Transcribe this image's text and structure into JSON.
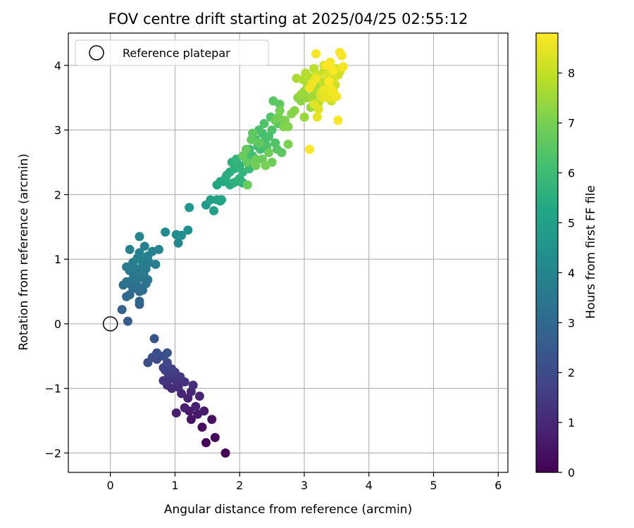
{
  "chart_data": {
    "type": "scatter",
    "title": "FOV centre drift starting at 2025/04/25 02:55:12",
    "xlabel": "Angular distance from reference (arcmin)",
    "ylabel": "Rotation from reference (arcmin)",
    "colorbar_label": "Hours from first FF file",
    "colormap": "viridis",
    "colorbar_range": [
      0,
      8.8
    ],
    "colorbar_ticks": [
      0,
      1,
      2,
      3,
      4,
      5,
      6,
      7,
      8
    ],
    "xlim": [
      -0.65,
      6.15
    ],
    "ylim": [
      -2.3,
      4.5
    ],
    "xticks": [
      0,
      1,
      2,
      3,
      4,
      5,
      6
    ],
    "yticks": [
      -2,
      -1,
      0,
      1,
      2,
      3,
      4
    ],
    "ytick_labels": [
      "−2",
      "−1",
      "0",
      "1",
      "2",
      "3",
      "4"
    ],
    "grid": true,
    "legend": {
      "location": "upper-left",
      "entries": [
        "Reference platepar"
      ]
    },
    "reference_point": {
      "x": 0,
      "y": 0
    },
    "points": [
      [
        1.78,
        -2.0,
        0.0
      ],
      [
        1.48,
        -1.84,
        0.1
      ],
      [
        1.62,
        -1.76,
        0.15
      ],
      [
        1.42,
        -1.6,
        0.3
      ],
      [
        1.57,
        -1.48,
        0.35
      ],
      [
        1.25,
        -1.48,
        0.45
      ],
      [
        1.35,
        -1.4,
        0.55
      ],
      [
        1.22,
        -1.35,
        0.6
      ],
      [
        1.45,
        -1.35,
        0.65
      ],
      [
        1.02,
        -1.38,
        0.7
      ],
      [
        1.15,
        -1.3,
        0.75
      ],
      [
        1.32,
        -1.28,
        0.8
      ],
      [
        1.2,
        -1.15,
        0.85
      ],
      [
        1.38,
        -1.12,
        0.9
      ],
      [
        1.1,
        -1.08,
        0.95
      ],
      [
        1.25,
        -1.05,
        1.0
      ],
      [
        0.95,
        -1.0,
        1.05
      ],
      [
        1.05,
        -0.98,
        1.1
      ],
      [
        0.88,
        -0.95,
        1.15
      ],
      [
        1.28,
        -0.95,
        1.2
      ],
      [
        1.15,
        -0.9,
        1.25
      ],
      [
        1.02,
        -0.88,
        1.3
      ],
      [
        0.82,
        -0.88,
        1.35
      ],
      [
        0.95,
        -0.85,
        1.4
      ],
      [
        1.08,
        -0.82,
        1.45
      ],
      [
        0.9,
        -0.78,
        1.5
      ],
      [
        1.0,
        -0.75,
        1.55
      ],
      [
        0.85,
        -0.72,
        1.6
      ],
      [
        0.95,
        -0.7,
        1.65
      ],
      [
        0.82,
        -0.68,
        1.7
      ],
      [
        0.88,
        -0.6,
        1.85
      ],
      [
        0.72,
        -0.55,
        1.95
      ],
      [
        0.58,
        -0.6,
        2.0
      ],
      [
        0.65,
        -0.52,
        2.05
      ],
      [
        0.82,
        -0.5,
        2.1
      ],
      [
        0.72,
        -0.45,
        2.15
      ],
      [
        0.88,
        -0.45,
        2.2
      ],
      [
        0.68,
        -0.23,
        2.3
      ],
      [
        0.27,
        0.04,
        2.5
      ],
      [
        0.18,
        0.22,
        2.7
      ],
      [
        0.45,
        0.3,
        2.8
      ],
      [
        0.45,
        0.35,
        2.85
      ],
      [
        0.25,
        0.42,
        2.95
      ],
      [
        0.3,
        0.45,
        3.0
      ],
      [
        0.45,
        0.5,
        3.05
      ],
      [
        0.5,
        0.52,
        3.1
      ],
      [
        0.35,
        0.55,
        3.15
      ],
      [
        0.42,
        0.58,
        3.2
      ],
      [
        0.2,
        0.6,
        3.25
      ],
      [
        0.55,
        0.62,
        3.3
      ],
      [
        0.3,
        0.62,
        3.3
      ],
      [
        0.4,
        0.65,
        3.35
      ],
      [
        0.25,
        0.65,
        3.35
      ],
      [
        0.58,
        0.68,
        3.4
      ],
      [
        0.35,
        0.7,
        3.4
      ],
      [
        0.48,
        0.72,
        3.45
      ],
      [
        0.52,
        0.75,
        3.5
      ],
      [
        0.38,
        0.78,
        3.5
      ],
      [
        0.45,
        0.8,
        3.55
      ],
      [
        0.3,
        0.82,
        3.55
      ],
      [
        0.55,
        0.85,
        3.6
      ],
      [
        0.4,
        0.85,
        3.6
      ],
      [
        0.25,
        0.88,
        3.65
      ],
      [
        0.5,
        0.9,
        3.65
      ],
      [
        0.7,
        0.92,
        3.7
      ],
      [
        0.6,
        0.95,
        3.7
      ],
      [
        0.35,
        0.95,
        3.7
      ],
      [
        0.48,
        0.98,
        3.75
      ],
      [
        0.55,
        1.0,
        3.75
      ],
      [
        0.42,
        1.02,
        3.8
      ],
      [
        0.58,
        1.05,
        3.8
      ],
      [
        0.45,
        1.1,
        3.85
      ],
      [
        0.65,
        1.12,
        3.85
      ],
      [
        0.3,
        1.15,
        3.9
      ],
      [
        0.53,
        1.2,
        3.9
      ],
      [
        0.75,
        1.15,
        3.95
      ],
      [
        0.45,
        1.35,
        4.0
      ],
      [
        1.05,
        1.25,
        4.1
      ],
      [
        0.85,
        1.42,
        4.2
      ],
      [
        1.02,
        1.38,
        4.25
      ],
      [
        1.1,
        1.37,
        4.3
      ],
      [
        1.2,
        1.45,
        4.4
      ],
      [
        1.22,
        1.8,
        4.6
      ],
      [
        1.48,
        1.84,
        4.8
      ],
      [
        1.6,
        1.75,
        4.95
      ],
      [
        1.55,
        1.92,
        5.0
      ],
      [
        1.65,
        1.92,
        5.05
      ],
      [
        1.7,
        1.9,
        5.1
      ],
      [
        1.72,
        1.92,
        5.15
      ],
      [
        1.65,
        2.15,
        5.2
      ],
      [
        1.7,
        2.2,
        5.25
      ],
      [
        1.75,
        2.2,
        5.3
      ],
      [
        1.78,
        2.25,
        5.35
      ],
      [
        1.85,
        2.15,
        5.4
      ],
      [
        1.9,
        2.18,
        5.45
      ],
      [
        1.8,
        2.3,
        5.5
      ],
      [
        1.85,
        2.35,
        5.5
      ],
      [
        1.95,
        2.2,
        5.55
      ],
      [
        1.92,
        2.4,
        5.6
      ],
      [
        1.88,
        2.5,
        5.6
      ],
      [
        2.0,
        2.25,
        5.65
      ],
      [
        2.05,
        2.18,
        5.7
      ],
      [
        2.0,
        2.45,
        5.7
      ],
      [
        2.05,
        2.35,
        5.75
      ],
      [
        1.95,
        2.55,
        5.8
      ],
      [
        2.1,
        2.55,
        5.85
      ],
      [
        2.15,
        2.4,
        5.9
      ],
      [
        2.08,
        2.6,
        5.95
      ],
      [
        2.15,
        2.7,
        6.0
      ],
      [
        2.25,
        2.45,
        6.0
      ],
      [
        2.2,
        2.6,
        6.05
      ],
      [
        2.28,
        2.75,
        6.1
      ],
      [
        2.32,
        2.7,
        6.1
      ],
      [
        2.35,
        2.95,
        6.15
      ],
      [
        2.25,
        2.85,
        6.2
      ],
      [
        2.4,
        2.85,
        6.2
      ],
      [
        2.3,
        3.0,
        6.25
      ],
      [
        2.45,
        2.9,
        6.25
      ],
      [
        2.38,
        3.1,
        6.3
      ],
      [
        2.5,
        3.0,
        6.3
      ],
      [
        2.42,
        2.75,
        6.35
      ],
      [
        2.55,
        2.8,
        6.35
      ],
      [
        2.48,
        3.2,
        6.4
      ],
      [
        2.6,
        3.1,
        6.45
      ],
      [
        2.52,
        3.45,
        6.5
      ],
      [
        2.58,
        2.7,
        6.5
      ],
      [
        2.65,
        2.65,
        6.55
      ],
      [
        2.62,
        3.4,
        6.6
      ],
      [
        2.2,
        2.95,
        6.6
      ],
      [
        2.3,
        2.8,
        6.65
      ],
      [
        2.18,
        2.85,
        6.65
      ],
      [
        2.1,
        2.7,
        6.7
      ],
      [
        2.12,
        2.5,
        6.7
      ],
      [
        2.05,
        2.6,
        6.75
      ],
      [
        2.35,
        2.55,
        6.75
      ],
      [
        2.25,
        2.55,
        6.8
      ],
      [
        2.45,
        2.65,
        6.85
      ],
      [
        2.5,
        2.5,
        6.85
      ],
      [
        2.55,
        3.15,
        6.9
      ],
      [
        2.6,
        3.2,
        6.95
      ],
      [
        2.62,
        3.3,
        7.0
      ],
      [
        2.7,
        3.15,
        7.05
      ],
      [
        2.75,
        2.78,
        7.05
      ],
      [
        2.68,
        3.05,
        7.1
      ],
      [
        2.12,
        2.15,
        6.8
      ],
      [
        2.25,
        2.45,
        6.9
      ],
      [
        2.4,
        2.45,
        7.0
      ],
      [
        2.75,
        3.05,
        7.15
      ],
      [
        2.8,
        3.25,
        7.2
      ],
      [
        2.85,
        3.3,
        7.25
      ],
      [
        2.9,
        3.5,
        7.3
      ],
      [
        2.95,
        3.45,
        7.3
      ],
      [
        3.0,
        3.6,
        7.35
      ],
      [
        3.05,
        3.5,
        7.4
      ],
      [
        3.1,
        3.35,
        7.45
      ],
      [
        3.0,
        3.2,
        7.45
      ],
      [
        2.95,
        3.55,
        7.5
      ],
      [
        3.12,
        3.5,
        7.55
      ],
      [
        3.15,
        3.55,
        7.55
      ],
      [
        3.15,
        3.75,
        7.6
      ],
      [
        3.05,
        3.68,
        7.65
      ],
      [
        3.2,
        3.65,
        7.65
      ],
      [
        2.88,
        3.8,
        7.7
      ],
      [
        2.98,
        3.78,
        7.75
      ],
      [
        3.08,
        3.82,
        7.8
      ],
      [
        3.02,
        3.88,
        7.8
      ],
      [
        3.15,
        3.95,
        7.85
      ],
      [
        3.22,
        3.42,
        7.9
      ],
      [
        3.25,
        3.6,
        7.9
      ],
      [
        3.28,
        3.75,
        7.95
      ],
      [
        3.3,
        3.9,
        8.0
      ],
      [
        3.35,
        3.95,
        8.0
      ],
      [
        3.2,
        3.85,
        8.05
      ],
      [
        3.32,
        3.55,
        8.05
      ],
      [
        3.38,
        3.65,
        8.1
      ],
      [
        3.42,
        3.45,
        8.1
      ],
      [
        3.45,
        3.6,
        8.15
      ],
      [
        3.48,
        3.7,
        8.15
      ],
      [
        3.52,
        3.85,
        8.2
      ],
      [
        3.55,
        3.9,
        8.2
      ],
      [
        3.5,
        3.95,
        8.25
      ],
      [
        3.45,
        3.8,
        8.25
      ],
      [
        3.4,
        3.7,
        8.3
      ],
      [
        3.35,
        3.85,
        8.3
      ],
      [
        3.3,
        4.0,
        8.35
      ],
      [
        3.25,
        3.55,
        8.35
      ],
      [
        3.22,
        3.32,
        8.4
      ],
      [
        3.15,
        3.4,
        8.4
      ],
      [
        3.2,
        3.2,
        8.45
      ],
      [
        3.28,
        3.5,
        8.45
      ],
      [
        3.35,
        3.5,
        8.5
      ],
      [
        3.4,
        3.55,
        8.5
      ],
      [
        3.45,
        3.5,
        8.55
      ],
      [
        3.3,
        3.62,
        8.55
      ],
      [
        3.08,
        3.65,
        8.6
      ],
      [
        3.12,
        3.72,
        8.6
      ],
      [
        3.18,
        3.8,
        8.62
      ],
      [
        3.45,
        3.58,
        8.62
      ],
      [
        3.5,
        3.52,
        8.65
      ],
      [
        3.42,
        3.62,
        8.65
      ],
      [
        3.6,
        3.98,
        8.68
      ],
      [
        3.55,
        4.2,
        8.7
      ],
      [
        3.58,
        4.15,
        8.7
      ],
      [
        3.18,
        4.18,
        8.72
      ],
      [
        3.4,
        4.05,
        8.72
      ],
      [
        3.52,
        3.15,
        8.75
      ],
      [
        3.08,
        2.7,
        8.75
      ],
      [
        3.35,
        4.0,
        8.78
      ],
      [
        3.45,
        3.92,
        8.78
      ],
      [
        3.38,
        3.75,
        8.8
      ]
    ]
  }
}
